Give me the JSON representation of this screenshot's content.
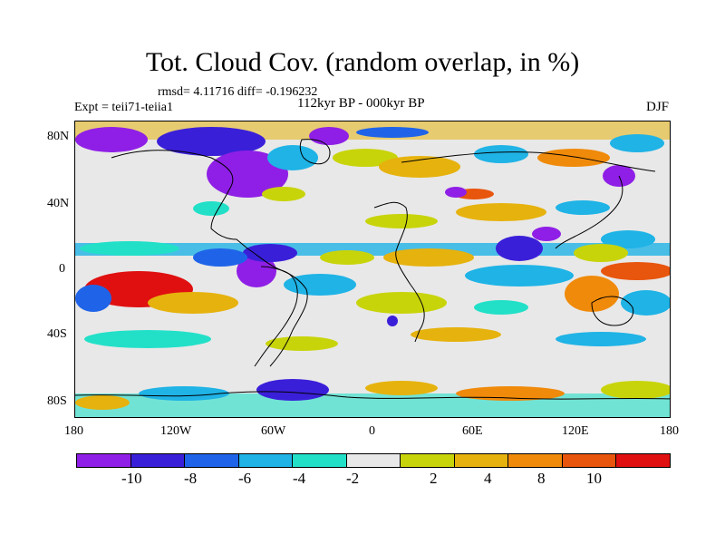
{
  "title": "Tot. Cloud Cov. (random overlap, in %)",
  "stats": "rmsd= 4.11716 diff= -0.196232",
  "experiment": "Expt = teii71-teiia1",
  "period": "112kyr BP - 000kyr BP",
  "season": "DJF",
  "map": {
    "projection": "cylindrical equidistant",
    "variable": "total cloud cover difference",
    "units": "%",
    "lat_ticks": [
      "80N",
      "40N",
      "0",
      "40S",
      "80S"
    ],
    "lon_ticks": [
      "180",
      "120W",
      "60W",
      "0",
      "60E",
      "120E",
      "180"
    ],
    "ocean_land_neutral_color": "#e8e8e8",
    "coastline_color": "#000000"
  },
  "colorbar": {
    "colors": [
      "#8f1fe6",
      "#3a1fd9",
      "#1f64e8",
      "#1fb3e6",
      "#22e0c8",
      "#e8e8e8",
      "#c8d40a",
      "#e6b20d",
      "#f08a0a",
      "#e8550d",
      "#e01010"
    ],
    "labels": [
      "-10",
      "-8",
      "-6",
      "-4",
      "-2",
      "2",
      "4",
      "8",
      "10"
    ]
  }
}
